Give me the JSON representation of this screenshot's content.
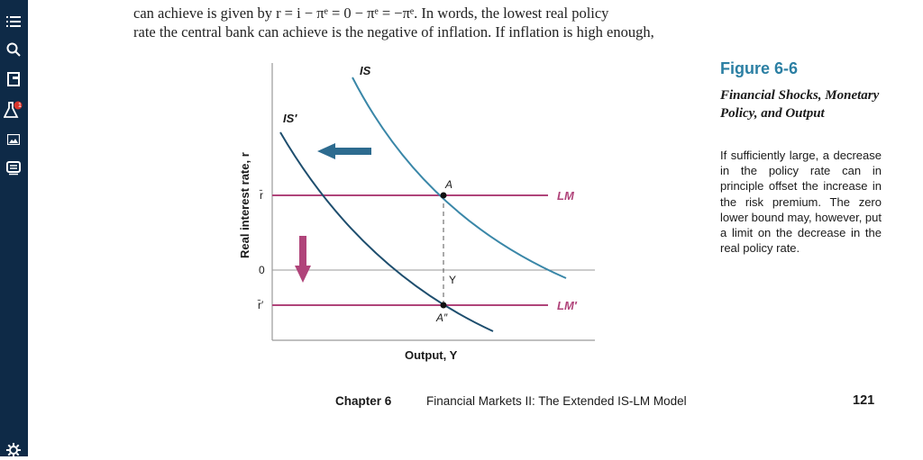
{
  "sidebar": {
    "items": [
      {
        "name": "list",
        "icon": "list-icon"
      },
      {
        "name": "search",
        "icon": "search-icon"
      },
      {
        "name": "bookmark",
        "icon": "bookmark-icon"
      },
      {
        "name": "notes",
        "icon": "flask-icon",
        "badge": "1"
      },
      {
        "name": "images",
        "icon": "image-icon"
      },
      {
        "name": "chat",
        "icon": "chat-icon"
      },
      {
        "name": "settings",
        "icon": "gear-icon"
      }
    ]
  },
  "body_text": {
    "line1": "can achieve is given by r = i − πᵉ = 0 − πᵉ = −πᵉ. In words, the lowest real policy",
    "line2": "rate the central bank can achieve is the negative of inflation. If inflation is high enough,"
  },
  "figure": {
    "title": "Figure 6-6",
    "subtitle": "Financial Shocks, Monetary Policy, and Output",
    "caption": "If sufficiently large, a decrease in the policy rate can in principle offset the increase in the risk premium. The zero lower bound may, however, put a limit on the decrease in the real policy rate."
  },
  "chart_data": {
    "type": "line",
    "xlabel": "Output, Y",
    "ylabel": "Real interest rate, r",
    "y_ticks": [
      "r̄",
      "0",
      "r̄′"
    ],
    "series": [
      {
        "name": "IS"
      },
      {
        "name": "IS′"
      },
      {
        "name": "LM"
      },
      {
        "name": "LM′"
      }
    ],
    "points": [
      {
        "name": "A"
      },
      {
        "name": "A″"
      },
      {
        "name": "Y"
      }
    ],
    "colors": {
      "is": "#3a87a8",
      "is_prime": "#1e4e6e",
      "lm": "#b0447a",
      "arrow_left": "#2d6b8f",
      "arrow_down": "#b0447a"
    }
  },
  "footer": {
    "chapter": "Chapter 6",
    "title": "Financial Markets II: The Extended IS-LM Model",
    "page": "121"
  }
}
